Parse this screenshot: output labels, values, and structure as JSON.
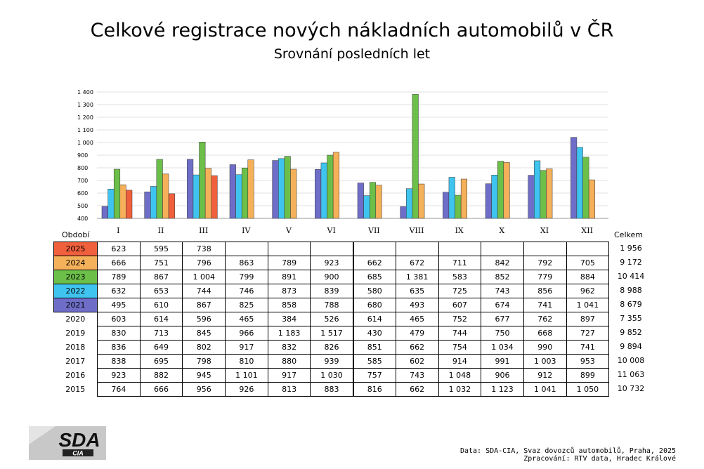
{
  "title": "Celkové registrace nových nákladních automobilů v ČR",
  "subtitle": "Srovnání posledních let",
  "table": {
    "period_label": "Období",
    "total_label": "Celkem",
    "rows": [
      {
        "year": "2025",
        "color": "#f0603c",
        "values": [
          "623",
          "595",
          "738",
          "",
          "",
          "",
          "",
          "",
          "",
          "",
          "",
          ""
        ],
        "total": "1 956"
      },
      {
        "year": "2024",
        "color": "#f5b05a",
        "values": [
          "666",
          "751",
          "796",
          "863",
          "789",
          "923",
          "662",
          "672",
          "711",
          "842",
          "792",
          "705"
        ],
        "total": "9 172"
      },
      {
        "year": "2023",
        "color": "#6cc04a",
        "values": [
          "789",
          "867",
          "1 004",
          "799",
          "891",
          "900",
          "685",
          "1 381",
          "583",
          "852",
          "779",
          "884"
        ],
        "total": "10 414"
      },
      {
        "year": "2022",
        "color": "#3fc4f0",
        "values": [
          "632",
          "653",
          "744",
          "746",
          "873",
          "839",
          "580",
          "635",
          "725",
          "743",
          "856",
          "962"
        ],
        "total": "8 988"
      },
      {
        "year": "2021",
        "color": "#6e6ec8",
        "values": [
          "495",
          "610",
          "867",
          "825",
          "858",
          "788",
          "680",
          "493",
          "607",
          "674",
          "741",
          "1 041"
        ],
        "total": "8 679"
      },
      {
        "year": "2020",
        "color": "",
        "values": [
          "603",
          "614",
          "596",
          "465",
          "384",
          "526",
          "614",
          "465",
          "752",
          "677",
          "762",
          "897"
        ],
        "total": "7 355"
      },
      {
        "year": "2019",
        "color": "",
        "values": [
          "830",
          "713",
          "845",
          "966",
          "1 183",
          "1 517",
          "430",
          "479",
          "744",
          "750",
          "668",
          "727"
        ],
        "total": "9 852"
      },
      {
        "year": "2018",
        "color": "",
        "values": [
          "836",
          "649",
          "802",
          "917",
          "832",
          "826",
          "851",
          "662",
          "754",
          "1 034",
          "990",
          "741"
        ],
        "total": "9 894"
      },
      {
        "year": "2017",
        "color": "",
        "values": [
          "838",
          "695",
          "798",
          "810",
          "880",
          "939",
          "585",
          "602",
          "914",
          "991",
          "1 003",
          "953"
        ],
        "total": "10 008"
      },
      {
        "year": "2016",
        "color": "",
        "values": [
          "923",
          "882",
          "945",
          "1 101",
          "917",
          "1 030",
          "757",
          "743",
          "1 048",
          "906",
          "912",
          "899"
        ],
        "total": "11 063"
      },
      {
        "year": "2015",
        "color": "",
        "values": [
          "764",
          "666",
          "956",
          "926",
          "813",
          "883",
          "816",
          "662",
          "1 032",
          "1 123",
          "1 041",
          "1 050"
        ],
        "total": "10 732"
      }
    ]
  },
  "chart_data": {
    "type": "bar",
    "title": "Celkové registrace nových nákladních automobilů v ČR",
    "subtitle": "Srovnání posledních let",
    "categories": [
      "I",
      "II",
      "III",
      "IV",
      "V",
      "VI",
      "VII",
      "VIII",
      "IX",
      "X",
      "XI",
      "XII"
    ],
    "ylim": [
      400,
      1400
    ],
    "yticks": [
      "400",
      "500",
      "600",
      "700",
      "800",
      "900",
      "1 000",
      "1 100",
      "1 200",
      "1 300",
      "1 400"
    ],
    "grid": true,
    "series": [
      {
        "name": "2021",
        "color": "#6e6ec8",
        "values": [
          495,
          610,
          867,
          825,
          858,
          788,
          680,
          493,
          607,
          674,
          741,
          1041
        ]
      },
      {
        "name": "2022",
        "color": "#3fc4f0",
        "values": [
          632,
          653,
          744,
          746,
          873,
          839,
          580,
          635,
          725,
          743,
          856,
          962
        ]
      },
      {
        "name": "2023",
        "color": "#6cc04a",
        "values": [
          789,
          867,
          1004,
          799,
          891,
          900,
          685,
          1381,
          583,
          852,
          779,
          884
        ]
      },
      {
        "name": "2024",
        "color": "#f5b05a",
        "values": [
          666,
          751,
          796,
          863,
          789,
          923,
          662,
          672,
          711,
          842,
          792,
          705
        ]
      },
      {
        "name": "2025",
        "color": "#f0603c",
        "values": [
          623,
          595,
          738,
          null,
          null,
          null,
          null,
          null,
          null,
          null,
          null,
          null
        ]
      }
    ]
  },
  "footer": {
    "line1": "Data: SDA-CIA, Svaz dovozců automobilů, Praha, 2025",
    "line2": "Zpracování: RTV data, Hradec Králové"
  },
  "logo": {
    "main": "SDA",
    "sub": "CIA"
  }
}
